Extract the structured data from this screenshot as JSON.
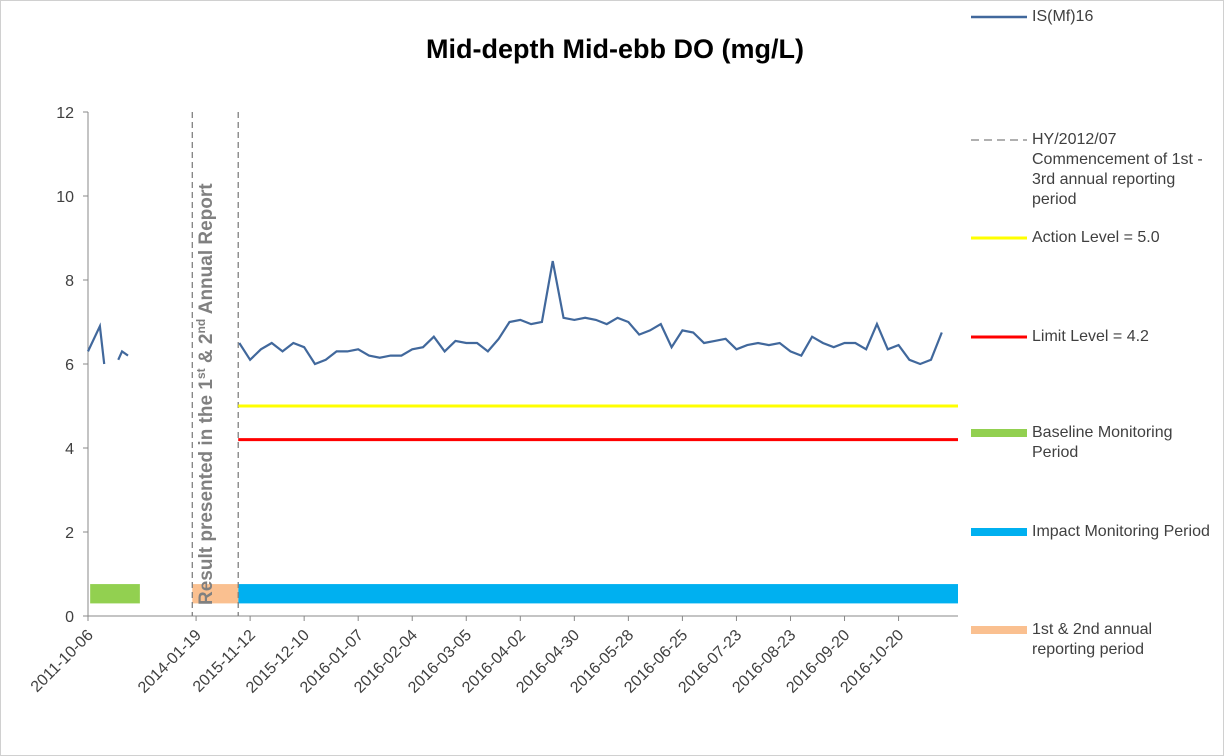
{
  "chart_data": {
    "type": "line",
    "title": "Mid-depth Mid-ebb DO (mg/L)",
    "xlim": [
      0,
      16.1
    ],
    "ylim": [
      0,
      12
    ],
    "yticks": [
      0,
      2,
      4,
      6,
      8,
      10,
      12
    ],
    "xticks": [
      {
        "value": 0,
        "label": "2011-10-06"
      },
      {
        "value": 2,
        "label": "2014-01-19"
      },
      {
        "value": 3,
        "label": "2015-11-12"
      },
      {
        "value": 4,
        "label": "2015-12-10"
      },
      {
        "value": 5,
        "label": "2016-01-07"
      },
      {
        "value": 6,
        "label": "2016-02-04"
      },
      {
        "value": 7,
        "label": "2016-03-05"
      },
      {
        "value": 8,
        "label": "2016-04-02"
      },
      {
        "value": 9,
        "label": "2016-04-30"
      },
      {
        "value": 10,
        "label": "2016-05-28"
      },
      {
        "value": 11,
        "label": "2016-06-25"
      },
      {
        "value": 12,
        "label": "2016-07-23"
      },
      {
        "value": 13,
        "label": "2016-08-23"
      },
      {
        "value": 14,
        "label": "2016-09-20"
      },
      {
        "value": 15,
        "label": "2016-10-20"
      }
    ],
    "series": [
      {
        "name": "IS(Mf)16",
        "color": "#41689c",
        "x": [
          0,
          0.22,
          0.3,
          0.4,
          0.56,
          0.63,
          0.74,
          1.5,
          2.8,
          3.0,
          3.2,
          3.4,
          3.6,
          3.8,
          4.0,
          4.2,
          4.4,
          4.6,
          4.8,
          5.0,
          5.2,
          5.4,
          5.6,
          5.8,
          6.0,
          6.2,
          6.4,
          6.6,
          6.8,
          7.0,
          7.2,
          7.4,
          7.6,
          7.8,
          8.0,
          8.2,
          8.4,
          8.6,
          8.8,
          9.0,
          9.2,
          9.4,
          9.6,
          9.8,
          10.0,
          10.2,
          10.4,
          10.6,
          10.8,
          11.0,
          11.2,
          11.4,
          11.6,
          11.8,
          12.0,
          12.2,
          12.4,
          12.6,
          12.8,
          13.0,
          13.2,
          13.4,
          13.6,
          13.8,
          14.0,
          14.2,
          14.4,
          14.6,
          14.8,
          15.0,
          15.2,
          15.4,
          15.6,
          15.8
        ],
        "values": [
          6.3,
          6.9,
          6.0,
          null,
          6.1,
          6.3,
          6.2,
          null,
          6.5,
          6.1,
          6.35,
          6.5,
          6.3,
          6.5,
          6.4,
          6.0,
          6.1,
          6.3,
          6.3,
          6.35,
          6.2,
          6.15,
          6.2,
          6.2,
          6.35,
          6.4,
          6.65,
          6.3,
          6.55,
          6.5,
          6.5,
          6.3,
          6.6,
          7.0,
          7.05,
          6.95,
          7.0,
          8.45,
          7.1,
          7.05,
          7.1,
          7.05,
          6.95,
          7.1,
          7.0,
          6.7,
          6.8,
          6.95,
          6.4,
          6.8,
          6.75,
          6.5,
          6.55,
          6.6,
          6.35,
          6.45,
          6.5,
          6.45,
          6.5,
          6.3,
          6.2,
          6.65,
          6.5,
          6.4,
          6.5,
          6.5,
          6.35,
          6.95,
          6.35,
          6.45,
          6.1,
          6.0,
          6.1,
          6.75
        ]
      },
      {
        "name": "Action Level = 5.0",
        "color": "#ffff00",
        "x": [
          2.78,
          16.1
        ],
        "values": [
          5,
          5
        ]
      },
      {
        "name": "Limit Level = 4.2",
        "color": "#ff0000",
        "x": [
          2.78,
          16.1
        ],
        "values": [
          4.2,
          4.2
        ]
      }
    ],
    "vlines": {
      "name": "HY/2012/07 Commencement of 1st - 3rd annual reporting period",
      "color": "#808080",
      "x": [
        1.93,
        2.78
      ]
    },
    "bands": [
      {
        "name": "Baseline Monitoring Period",
        "color": "#92d050",
        "start": 0.04,
        "end": 0.96,
        "ylow": 0.3,
        "yhigh": 0.76
      },
      {
        "name": "Impact Monitoring Period",
        "color": "#00b0f0",
        "start": 2.78,
        "end": 16.1,
        "ylow": 0.3,
        "yhigh": 0.76
      },
      {
        "name": "1st & 2nd annual reporting period",
        "color": "#fac090",
        "start": 1.93,
        "end": 2.78,
        "ylow": 0.3,
        "yhigh": 0.76
      }
    ],
    "annotation": [
      "Result presented in the 1",
      "st",
      " & 2",
      "nd",
      " Annual Report"
    ]
  }
}
